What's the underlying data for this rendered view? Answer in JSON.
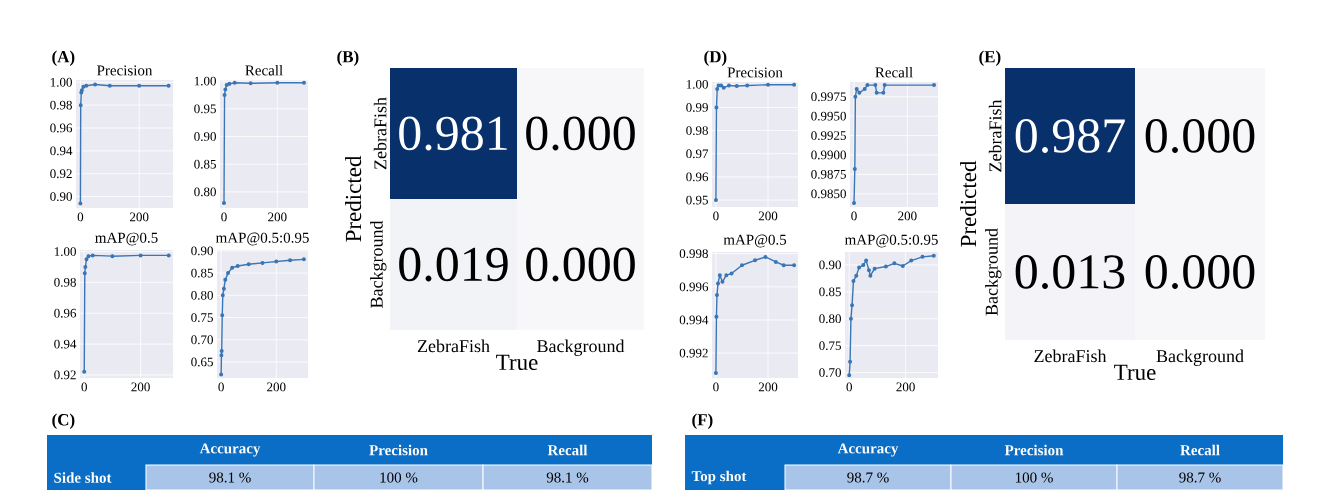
{
  "chart_data": [
    {
      "type": "line",
      "title": "Precision",
      "annotations": [
        "(A)"
      ],
      "xlim": [
        -15,
        315
      ],
      "xticks": [
        0,
        200
      ],
      "ylim": [
        0.89,
        1.002
      ],
      "yticks": [
        {
          "value": 0.9,
          "label": "0.90"
        },
        {
          "value": 0.92,
          "label": "0.92"
        },
        {
          "value": 0.94,
          "label": "0.94"
        },
        {
          "value": 0.96,
          "label": "0.96"
        },
        {
          "value": 0.98,
          "label": "0.98"
        },
        {
          "value": 1.0,
          "label": "1.00"
        }
      ],
      "grid": true,
      "marker": "circle",
      "line_style": "solid",
      "series": [
        {
          "color": "#3a76b5",
          "x": [
            0,
            1,
            3,
            5,
            10,
            20,
            50,
            100,
            200,
            300
          ],
          "values": [
            0.894,
            0.98,
            0.991,
            0.993,
            0.996,
            0.997,
            0.998,
            0.997,
            0.997,
            0.997
          ]
        }
      ]
    },
    {
      "type": "line",
      "title": "Recall",
      "xlim": [
        -15,
        315
      ],
      "xticks": [
        0,
        200
      ],
      "ylim": [
        0.771,
        1.002
      ],
      "yticks": [
        {
          "value": 0.8,
          "label": "0.80"
        },
        0.85,
        {
          "value": 0.9,
          "label": "0.90"
        },
        0.95,
        {
          "value": 1.0,
          "label": "1.00"
        }
      ],
      "grid": true,
      "marker": "circle",
      "line_style": "solid",
      "series": [
        {
          "color": "#3a76b5",
          "x": [
            0,
            2,
            5,
            10,
            20,
            40,
            100,
            200,
            300
          ],
          "values": [
            0.78,
            0.975,
            0.985,
            0.993,
            0.995,
            0.997,
            0.996,
            0.997,
            0.997
          ]
        }
      ]
    },
    {
      "type": "line",
      "title": "mAP@0.5",
      "xlim": [
        -15,
        315
      ],
      "xticks": [
        0,
        200
      ],
      "ylim": [
        0.918,
        1.001
      ],
      "yticks": [
        0.92,
        0.94,
        0.96,
        0.98,
        {
          "value": 1.0,
          "label": "1.00"
        }
      ],
      "grid": true,
      "marker": "circle",
      "line_style": "solid",
      "series": [
        {
          "color": "#3a76b5",
          "x": [
            0,
            2,
            4,
            8,
            15,
            30,
            100,
            200,
            300
          ],
          "values": [
            0.922,
            0.986,
            0.99,
            0.995,
            0.997,
            0.9975,
            0.997,
            0.9975,
            0.9975
          ]
        }
      ]
    },
    {
      "type": "line",
      "title": "mAP@0.5:0.95",
      "xlim": [
        -15,
        315
      ],
      "xticks": [
        0,
        200
      ],
      "ylim": [
        0.614,
        0.902
      ],
      "yticks": [
        0.65,
        {
          "value": 0.7,
          "label": "0.70"
        },
        0.75,
        {
          "value": 0.8,
          "label": "0.80"
        },
        0.85,
        {
          "value": 0.9,
          "label": "0.90"
        }
      ],
      "grid": true,
      "marker": "circle",
      "line_style": "solid",
      "series": [
        {
          "color": "#3a76b5",
          "x": [
            0,
            1,
            2,
            4,
            6,
            10,
            15,
            25,
            40,
            60,
            100,
            150,
            200,
            250,
            300
          ],
          "values": [
            0.622,
            0.665,
            0.675,
            0.755,
            0.8,
            0.815,
            0.835,
            0.85,
            0.862,
            0.866,
            0.87,
            0.873,
            0.876,
            0.879,
            0.881
          ]
        }
      ]
    },
    {
      "type": "heatmap",
      "annotations": [
        "(B)"
      ],
      "xlabel": "True",
      "ylabel": "Predicted",
      "categories": [
        "ZebraFish",
        "Background"
      ],
      "y_categories": [
        "ZebraFish",
        "Background"
      ],
      "cells": [
        [
          0.981,
          0.0
        ],
        [
          0.019,
          0.0
        ]
      ],
      "cell_labels": [
        [
          "0.981",
          "0.000"
        ],
        [
          "0.019",
          "0.000"
        ]
      ]
    },
    {
      "type": "line",
      "title": "Precision",
      "annotations": [
        "(D)"
      ],
      "xlim": [
        -15,
        315
      ],
      "xticks": [
        0,
        200
      ],
      "ylim": [
        0.947,
        1.001
      ],
      "yticks": [
        0.95,
        0.96,
        0.97,
        0.98,
        0.99,
        {
          "value": 1.0,
          "label": "1.00"
        }
      ],
      "grid": true,
      "marker": "circle",
      "line_style": "solid",
      "series": [
        {
          "color": "#3a76b5",
          "x": [
            0,
            2,
            5,
            10,
            20,
            30,
            50,
            80,
            120,
            200,
            300
          ],
          "values": [
            0.95,
            0.99,
            0.998,
            0.9995,
            0.9995,
            0.9985,
            0.9995,
            0.9993,
            0.9995,
            0.9998,
            0.9998
          ]
        }
      ]
    },
    {
      "type": "line",
      "title": "Recall",
      "xlim": [
        -15,
        315
      ],
      "xticks": [
        0,
        200
      ],
      "ylim": [
        0.9833,
        0.9994
      ],
      "yticks": [
        {
          "value": 0.985,
          "label": "0.9850"
        },
        0.9875,
        {
          "value": 0.99,
          "label": "0.9900"
        },
        0.9925,
        {
          "value": 0.995,
          "label": "0.9950"
        },
        0.9975
      ],
      "grid": true,
      "marker": "circle",
      "line_style": "solid",
      "series": [
        {
          "color": "#3a76b5",
          "x": [
            0,
            3,
            5,
            10,
            20,
            40,
            50,
            80,
            85,
            110,
            115,
            300
          ],
          "values": [
            0.9838,
            0.9882,
            0.9975,
            0.9985,
            0.998,
            0.9985,
            0.999,
            0.999,
            0.998,
            0.998,
            0.999,
            0.999
          ]
        }
      ]
    },
    {
      "type": "line",
      "title": "mAP@0.5",
      "xlim": [
        -15,
        315
      ],
      "xticks": [
        0,
        200
      ],
      "ylim": [
        0.9905,
        0.9981
      ],
      "yticks": [
        0.992,
        0.994,
        0.996,
        0.998
      ],
      "grid": true,
      "marker": "circle",
      "line_style": "solid",
      "series": [
        {
          "color": "#3a76b5",
          "x": [
            0,
            2,
            4,
            8,
            15,
            25,
            40,
            60,
            100,
            150,
            190,
            230,
            260,
            300
          ],
          "values": [
            0.9908,
            0.9942,
            0.9955,
            0.9962,
            0.9967,
            0.9963,
            0.9967,
            0.9968,
            0.9973,
            0.9976,
            0.9978,
            0.9975,
            0.9973,
            0.9973
          ]
        }
      ]
    },
    {
      "type": "line",
      "title": "mAP@0.5:0.95",
      "xlim": [
        -15,
        315
      ],
      "xticks": [
        0,
        200
      ],
      "ylim": [
        0.69,
        0.924
      ],
      "yticks": [
        {
          "value": 0.7,
          "label": "0.70"
        },
        0.75,
        {
          "value": 0.8,
          "label": "0.80"
        },
        0.85,
        {
          "value": 0.9,
          "label": "0.90"
        }
      ],
      "grid": true,
      "marker": "circle",
      "line_style": "solid",
      "series": [
        {
          "color": "#3a76b5",
          "x": [
            0,
            3,
            6,
            10,
            15,
            25,
            35,
            50,
            60,
            70,
            75,
            90,
            130,
            160,
            190,
            220,
            260,
            300
          ],
          "values": [
            0.695,
            0.72,
            0.8,
            0.825,
            0.87,
            0.88,
            0.895,
            0.9,
            0.908,
            0.89,
            0.88,
            0.893,
            0.897,
            0.903,
            0.898,
            0.908,
            0.915,
            0.917
          ]
        }
      ]
    },
    {
      "type": "heatmap",
      "annotations": [
        "(E)"
      ],
      "xlabel": "True",
      "ylabel": "Predicted",
      "categories": [
        "ZebraFish",
        "Background"
      ],
      "y_categories": [
        "ZebraFish",
        "Background"
      ],
      "cells": [
        [
          0.987,
          0.0
        ],
        [
          0.013,
          0.0
        ]
      ],
      "cell_labels": [
        [
          "0.987",
          "0.000"
        ],
        [
          "0.013",
          "0.000"
        ]
      ]
    },
    {
      "type": "other",
      "annotations": [
        "(C)"
      ],
      "categories": [
        null,
        "Accuracy",
        "Precision",
        "Recall"
      ],
      "y_categories": [
        "Side shot"
      ],
      "cell_labels": [
        [
          "98.1 %",
          "100 %",
          "98.1 %"
        ]
      ]
    },
    {
      "type": "other",
      "annotations": [
        "(F)"
      ],
      "categories": [
        null,
        "Accuracy",
        "Precision",
        "Recall"
      ],
      "y_categories": [
        "Top shot"
      ],
      "cell_labels": [
        [
          "98.7 %",
          "100 %",
          "98.7 %"
        ]
      ]
    }
  ]
}
